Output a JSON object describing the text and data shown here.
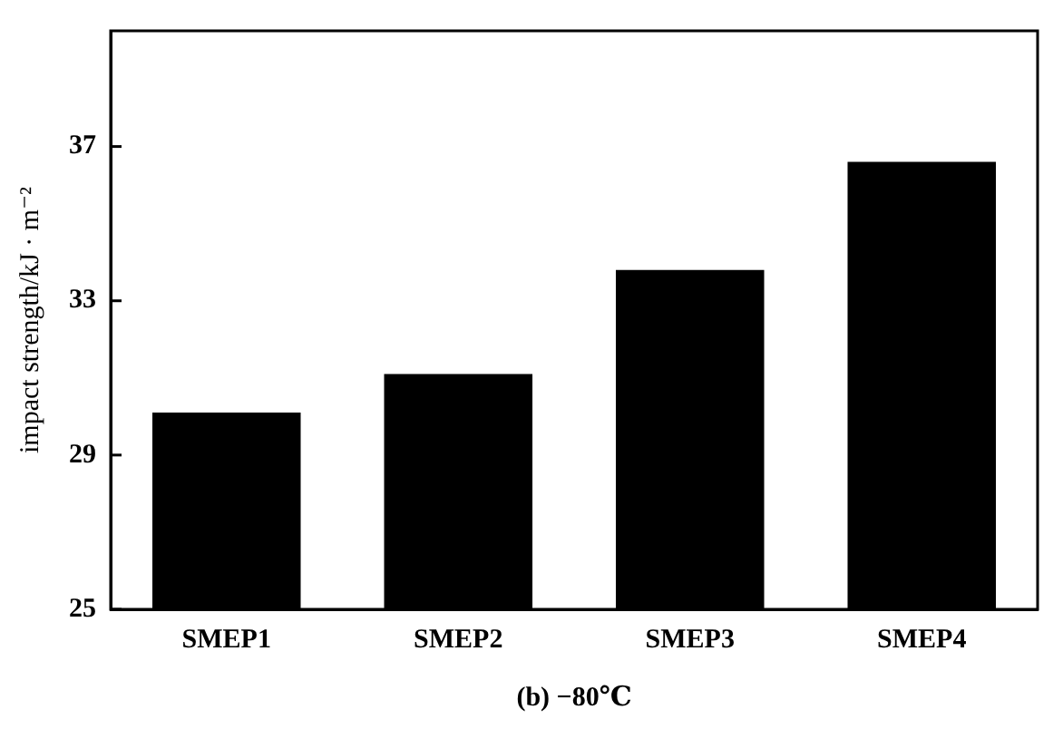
{
  "chart_data": {
    "type": "bar",
    "xlabel": "(b) −80℃",
    "ylabel": "impact strength/kJ · m⁻²",
    "categories": [
      "SMEP1",
      "SMEP2",
      "SMEP3",
      "SMEP4"
    ],
    "values": [
      30.1,
      31.1,
      33.8,
      36.6
    ],
    "color": "#000000",
    "ylim": [
      25,
      40
    ],
    "yticks": [
      25,
      29,
      33,
      37
    ],
    "grid": false,
    "legend": false
  }
}
